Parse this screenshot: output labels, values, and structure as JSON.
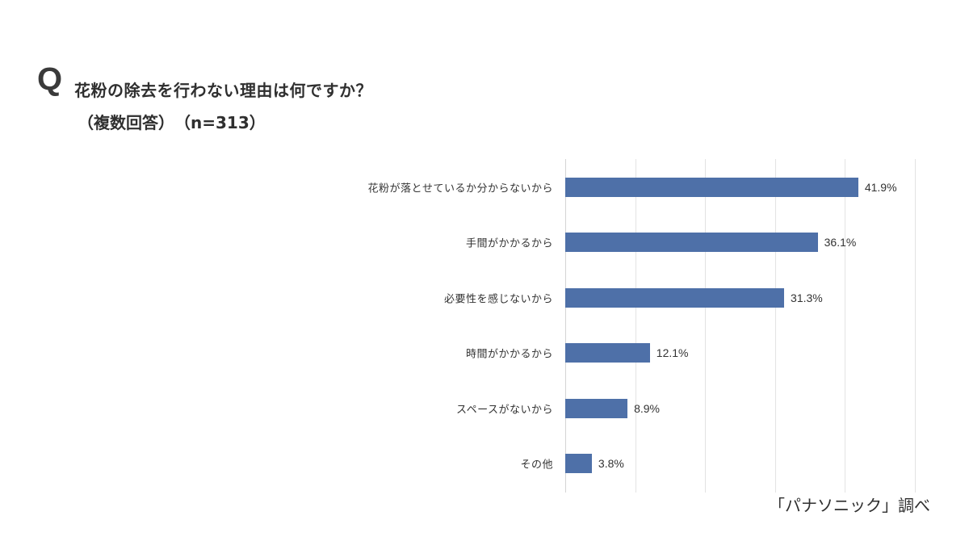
{
  "header": {
    "q_mark": "Q",
    "title": "花粉の除去を行わない理由は何ですか？",
    "subtitle": "（複数回答）　（n=313）"
  },
  "source": "「パナソニック」調べ",
  "colors": {
    "bar": "#4e70a8",
    "gridline": "#e3e3e3",
    "text": "#333333"
  },
  "chart_data": {
    "type": "bar",
    "orientation": "horizontal",
    "title": "花粉の除去を行わない理由は何ですか？（複数回答）（n=313）",
    "xlabel": "",
    "ylabel": "",
    "categories": [
      "花粉が落とせているか分からないから",
      "手間がかかるから",
      "必要性を感じないから",
      "時間がかかるから",
      "スペースがないから",
      "その他"
    ],
    "values": [
      41.9,
      36.1,
      31.3,
      12.1,
      8.9,
      3.8
    ],
    "value_labels": [
      "41.9%",
      "36.1%",
      "31.3%",
      "12.1%",
      "8.9%",
      "3.8%"
    ],
    "unit": "%",
    "xlim": [
      0,
      50
    ],
    "grid": true,
    "gridline_step": 10,
    "legend": "none",
    "source_note": "「パナソニック」調べ"
  }
}
